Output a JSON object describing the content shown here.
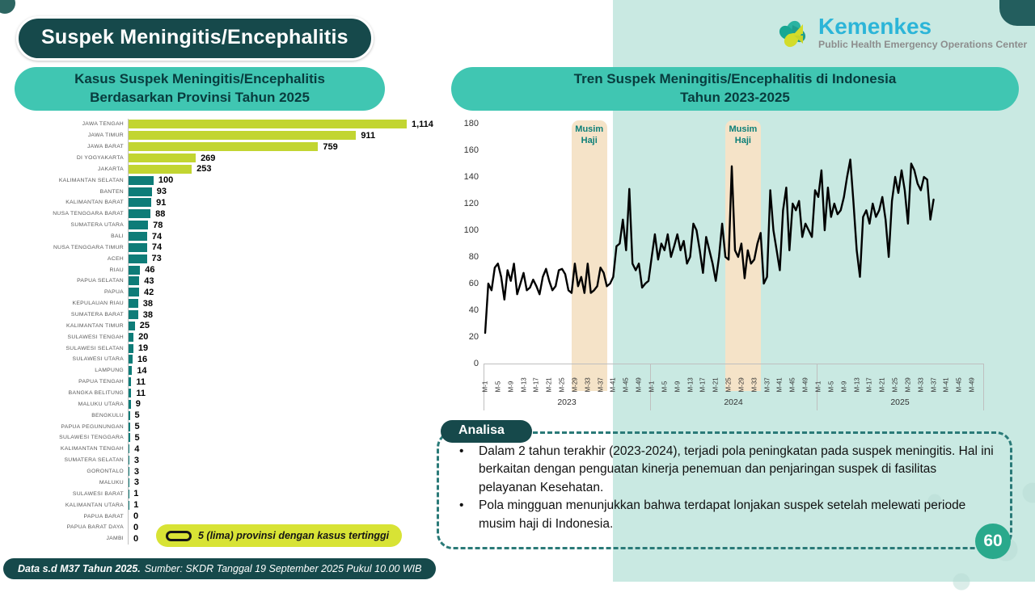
{
  "page": {
    "title": "Suspek Meningitis/Encephalitis",
    "page_number": "60",
    "footer_bold": "Data s.d M37 Tahun 2025.",
    "footer_rest": "Sumber: SKDR Tanggal 19 September 2025 Pukul 10.00 WIB"
  },
  "logo": {
    "name": "Kemenkes",
    "subtitle": "Public Health Emergency Operations Center"
  },
  "left_panel": {
    "header_line1": "Kasus Suspek Meningitis/Encephalitis",
    "header_line2": "Berdasarkan Provinsi Tahun 2025",
    "legend": "5 (lima) provinsi dengan kasus tertinggi"
  },
  "right_panel": {
    "header_line1": "Tren Suspek Meningitis/Encephalitis di Indonesia",
    "header_line2": "Tahun 2023-2025"
  },
  "analysis": {
    "header": "Analisa",
    "bullets": [
      "Dalam 2 tahun terakhir (2023-2024), terjadi pola peningkatan pada suspek meningitis. Hal ini berkaitan dengan penguatan kinerja penemuan dan penjaringan suspek di fasilitas pelayanan Kesehatan.",
      "Pola mingguan menunjukkan bahwa terdapat lonjakan suspek setelah melewati periode musim haji di Indonesia."
    ]
  },
  "colors": {
    "dark_teal": "#16494b",
    "header_teal": "#40c6b2",
    "mint": "#c9e9e2",
    "bar_teal": "#0e7c78",
    "bar_lime": "#c2d531",
    "legend_lime": "#d8e335",
    "band_peach": "#f5e3c8",
    "haji_text": "#0d7f78",
    "badge_teal": "#2aa98c",
    "line_black": "#000000",
    "kemenkes_blue": "#2cb5d8"
  },
  "chart_data": [
    {
      "type": "bar",
      "orientation": "horizontal",
      "title": "Kasus Suspek Meningitis/Encephalitis Berdasarkan Provinsi Tahun 2025",
      "categories": [
        "JAWA TENGAH",
        "JAWA TIMUR",
        "JAWA BARAT",
        "DI YOGYAKARTA",
        "JAKARTA",
        "KALIMANTAN SELATAN",
        "BANTEN",
        "KALIMANTAN BARAT",
        "NUSA TENGGARA BARAT",
        "SUMATERA UTARA",
        "BALI",
        "NUSA TENGGARA TIMUR",
        "ACEH",
        "RIAU",
        "PAPUA SELATAN",
        "PAPUA",
        "KEPULAUAN RIAU",
        "SUMATERA BARAT",
        "KALIMANTAN TIMUR",
        "SULAWESI TENGAH",
        "SULAWESI SELATAN",
        "SULAWESI UTARA",
        "LAMPUNG",
        "PAPUA TENGAH",
        "BANGKA BELITUNG",
        "MALUKU UTARA",
        "BENGKULU",
        "PAPUA PEGUNUNGAN",
        "SULAWESI TENGGARA",
        "KALIMANTAN TENGAH",
        "SUMATERA SELATAN",
        "GORONTALO",
        "MALUKU",
        "SULAWESI BARAT",
        "KALIMANTAN UTARA",
        "PAPUA BARAT",
        "PAPUA BARAT DAYA",
        "JAMBI"
      ],
      "values": [
        1114,
        911,
        759,
        269,
        253,
        100,
        93,
        91,
        88,
        78,
        74,
        74,
        73,
        46,
        43,
        42,
        38,
        38,
        25,
        20,
        19,
        16,
        14,
        11,
        11,
        9,
        5,
        5,
        5,
        4,
        3,
        3,
        3,
        1,
        1,
        0,
        0,
        0
      ],
      "highlight_top_n": 5,
      "highlight_color": "#c2d531",
      "bar_color": "#0e7c78",
      "legend": "5 (lima) provinsi dengan kasus tertinggi"
    },
    {
      "type": "line",
      "title": "Tren Suspek Meningitis/Encephalitis di Indonesia Tahun 2023-2025",
      "ylabel": "",
      "ylim": [
        0,
        180
      ],
      "y_ticks": [
        0,
        20,
        40,
        60,
        80,
        100,
        120,
        140,
        160,
        180
      ],
      "x_ticks": [
        "M-1",
        "M-5",
        "M-9",
        "M-13",
        "M-17",
        "M-21",
        "M-25",
        "M-29",
        "M-33",
        "M-37",
        "M-41",
        "M-45",
        "M-49"
      ],
      "years": [
        "2023",
        "2024",
        "2025"
      ],
      "weeks_per_year": 52,
      "series": [
        {
          "name": "Suspek Meningitis/Encephalitis mingguan",
          "values_2023": [
            23,
            60,
            55,
            72,
            75,
            65,
            48,
            70,
            62,
            75,
            52,
            60,
            68,
            55,
            57,
            63,
            58,
            52,
            65,
            71,
            62,
            55,
            58,
            70,
            71,
            67,
            55,
            53,
            75,
            58,
            65,
            53,
            75,
            53,
            55,
            58,
            72,
            68,
            58,
            60,
            65,
            88,
            90,
            108,
            85,
            131,
            75,
            70,
            75,
            57,
            60,
            62
          ],
          "values_2024": [
            80,
            97,
            78,
            90,
            85,
            97,
            80,
            88,
            97,
            85,
            92,
            75,
            80,
            105,
            100,
            85,
            68,
            95,
            85,
            75,
            62,
            80,
            105,
            80,
            78,
            148,
            85,
            80,
            90,
            64,
            85,
            75,
            78,
            90,
            98,
            60,
            65,
            130,
            100,
            85,
            70,
            115,
            132,
            85,
            120,
            115,
            122,
            95,
            105,
            100,
            95,
            130
          ],
          "values_2025": [
            125,
            145,
            100,
            132,
            110,
            120,
            112,
            115,
            125,
            140,
            153,
            120,
            85,
            65,
            110,
            115,
            105,
            120,
            110,
            115,
            125,
            108,
            80,
            122,
            140,
            128,
            145,
            130,
            105,
            150,
            145,
            135,
            130,
            140,
            138,
            108,
            123
          ]
        }
      ],
      "annotations": [
        {
          "label": "Musim Haji",
          "year": "2023",
          "week_start": 28,
          "week_end": 38
        },
        {
          "label": "Musim Haji",
          "year": "2024",
          "week_start": 24,
          "week_end": 34
        }
      ],
      "grid": false,
      "legend_position": "none"
    }
  ]
}
